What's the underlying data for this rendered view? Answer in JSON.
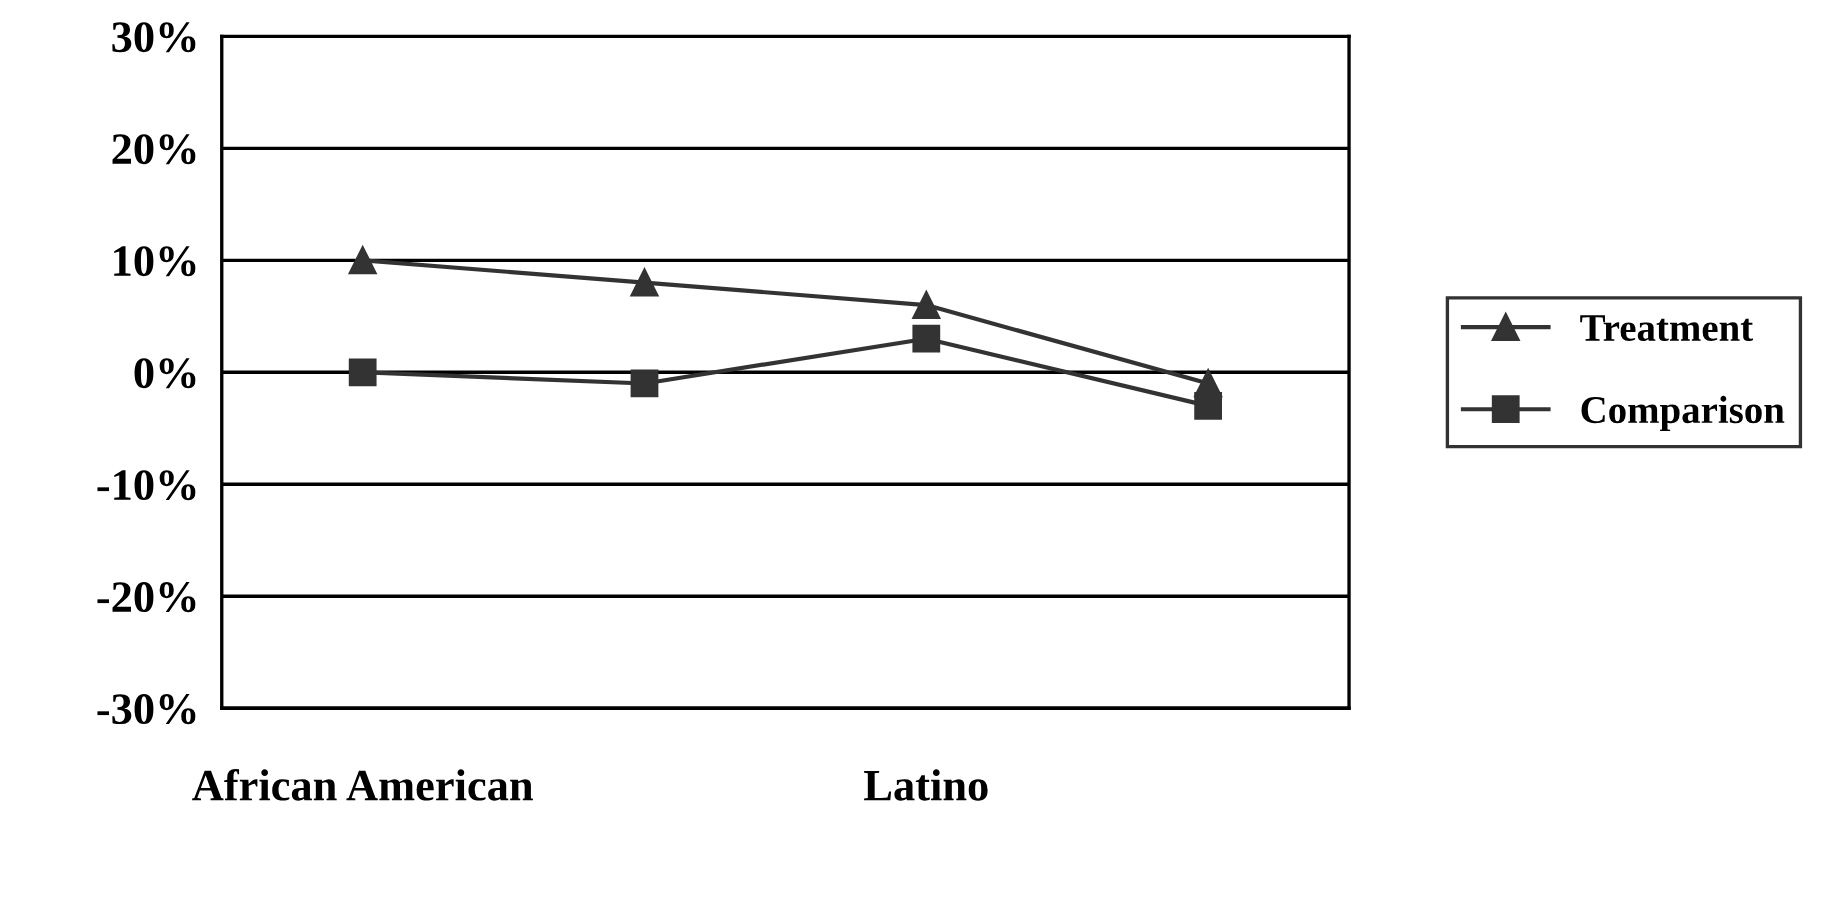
{
  "chart_data": {
    "type": "line",
    "categories": [
      "African American",
      null,
      "Latino",
      null
    ],
    "series": [
      {
        "name": "Treatment",
        "color": "#333333",
        "marker": "triangle",
        "values": [
          10,
          8,
          6,
          -1
        ]
      },
      {
        "name": "Comparison",
        "color": "#333333",
        "marker": "square",
        "values": [
          0,
          -1,
          3,
          -3
        ]
      }
    ],
    "ylim": [
      -30,
      30
    ],
    "yticks": [
      {
        "value": -30,
        "label": "-30%"
      },
      {
        "value": -20,
        "label": "-20%"
      },
      {
        "value": -10,
        "label": "-10%"
      },
      {
        "value": 0,
        "label": "0%"
      },
      {
        "value": 10,
        "label": "10%"
      },
      {
        "value": 20,
        "label": "20%"
      },
      {
        "value": 30,
        "label": "30%"
      }
    ],
    "grid": "y",
    "legend": "right",
    "line_style": "solid"
  }
}
